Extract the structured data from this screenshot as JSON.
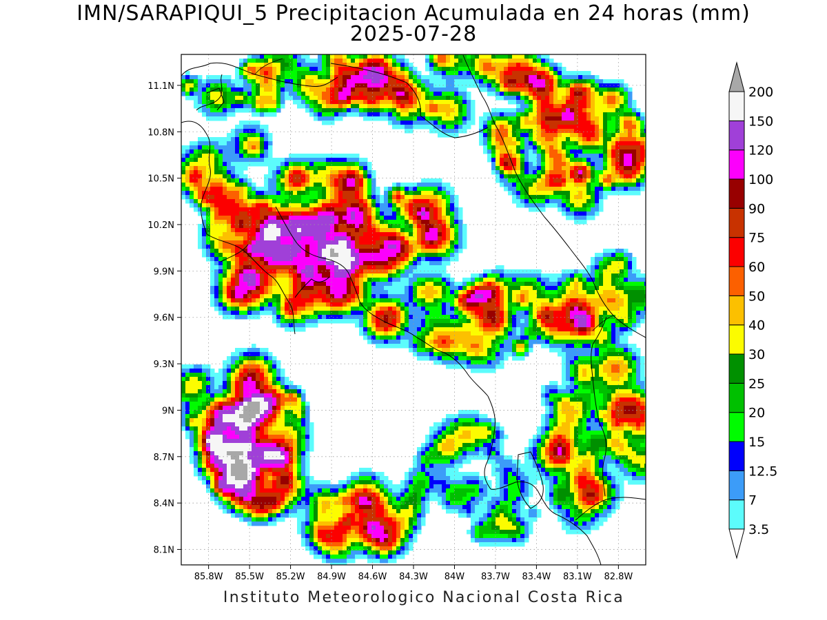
{
  "title": {
    "line1": "IMN/SARAPIQUI_5 Precipitacion Acumulada en 24 horas (mm)",
    "line2": "2025-07-28"
  },
  "footer": "Instituto Meteorologico Nacional Costa Rica",
  "map": {
    "lon_range": [
      -86.0,
      -82.6
    ],
    "lat_range": [
      8.0,
      11.3
    ],
    "y_ticks": [
      "11.1N",
      "10.8N",
      "10.5N",
      "10.2N",
      "9.9N",
      "9.6N",
      "9.3N",
      "9N",
      "8.7N",
      "8.4N",
      "8.1N"
    ],
    "x_ticks": [
      "85.8W",
      "85.5W",
      "85.2W",
      "84.9W",
      "84.6W",
      "84.3W",
      "84W",
      "83.7W",
      "83.4W",
      "83.1W",
      "82.8W"
    ],
    "grid": "dotted"
  },
  "colorbar": {
    "levels": [
      "3.5",
      "7",
      "12.5",
      "15",
      "20",
      "25",
      "30",
      "40",
      "50",
      "60",
      "75",
      "90",
      "100",
      "120",
      "150",
      "200"
    ],
    "colors": [
      "#5cfcfc",
      "#3c9cf8",
      "#0000fc",
      "#00fc00",
      "#00c000",
      "#009000",
      "#fcfc00",
      "#fcc000",
      "#fc6000",
      "#fc0000",
      "#c83200",
      "#980000",
      "#fc00fc",
      "#a040d8",
      "#f6f6f6",
      "#a8a8a8"
    ]
  }
}
